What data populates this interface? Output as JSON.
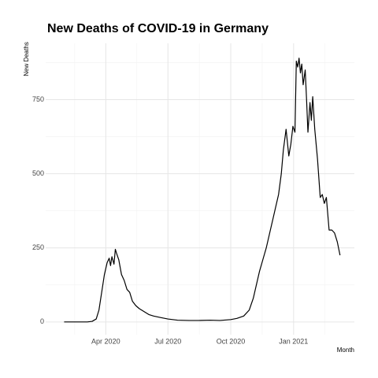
{
  "chart_data": {
    "type": "line",
    "title": "New Deaths of COVID-19 in Germany",
    "x_label": "Month",
    "y_label": "New Deaths",
    "x": [
      "2020-01-31",
      "2020-02-20",
      "2020-03-05",
      "2020-03-12",
      "2020-03-18",
      "2020-03-22",
      "2020-03-26",
      "2020-03-30",
      "2020-04-03",
      "2020-04-06",
      "2020-04-08",
      "2020-04-10",
      "2020-04-13",
      "2020-04-15",
      "2020-04-17",
      "2020-04-20",
      "2020-04-24",
      "2020-04-28",
      "2020-05-02",
      "2020-05-06",
      "2020-05-10",
      "2020-05-15",
      "2020-05-20",
      "2020-05-27",
      "2020-06-03",
      "2020-06-10",
      "2020-06-20",
      "2020-07-01",
      "2020-07-15",
      "2020-08-01",
      "2020-08-15",
      "2020-09-01",
      "2020-09-15",
      "2020-10-01",
      "2020-10-10",
      "2020-10-20",
      "2020-10-28",
      "2020-11-03",
      "2020-11-07",
      "2020-11-12",
      "2020-11-17",
      "2020-11-22",
      "2020-11-27",
      "2020-12-02",
      "2020-12-07",
      "2020-12-10",
      "2020-12-14",
      "2020-12-17",
      "2020-12-21",
      "2020-12-25",
      "2020-12-28",
      "2020-12-31",
      "2021-01-03",
      "2021-01-05",
      "2021-01-07",
      "2021-01-09",
      "2021-01-11",
      "2021-01-13",
      "2021-01-15",
      "2021-01-18",
      "2021-01-20",
      "2021-01-22",
      "2021-01-25",
      "2021-01-27",
      "2021-01-29",
      "2021-02-01",
      "2021-02-05",
      "2021-02-09",
      "2021-02-12",
      "2021-02-15",
      "2021-02-18",
      "2021-02-22",
      "2021-02-26",
      "2021-03-02",
      "2021-03-06",
      "2021-03-10"
    ],
    "series": [
      {
        "name": "New Deaths",
        "color": "#000000",
        "values": [
          0,
          0,
          0,
          2,
          10,
          40,
          100,
          160,
          200,
          215,
          190,
          220,
          195,
          245,
          230,
          210,
          160,
          140,
          110,
          100,
          70,
          55,
          45,
          35,
          25,
          20,
          15,
          10,
          6,
          5,
          5,
          6,
          5,
          8,
          12,
          20,
          40,
          80,
          120,
          170,
          210,
          250,
          300,
          350,
          400,
          430,
          500,
          580,
          650,
          560,
          600,
          660,
          640,
          880,
          860,
          890,
          840,
          870,
          800,
          850,
          750,
          640,
          740,
          680,
          760,
          650,
          550,
          420,
          430,
          400,
          420,
          310,
          310,
          300,
          270,
          225
        ]
      }
    ],
    "xlim": [
      "2020-01-04",
      "2021-03-31"
    ],
    "xticks": [
      {
        "value": "2020-04-01",
        "label": "Apr 2020"
      },
      {
        "value": "2020-07-01",
        "label": "Jul 2020"
      },
      {
        "value": "2020-10-01",
        "label": "Oct 2020"
      },
      {
        "value": "2021-01-01",
        "label": "Jan 2021"
      }
    ],
    "ylim": [
      -43,
      940
    ],
    "yticks": [
      0,
      250,
      500,
      750
    ],
    "grid": true
  }
}
